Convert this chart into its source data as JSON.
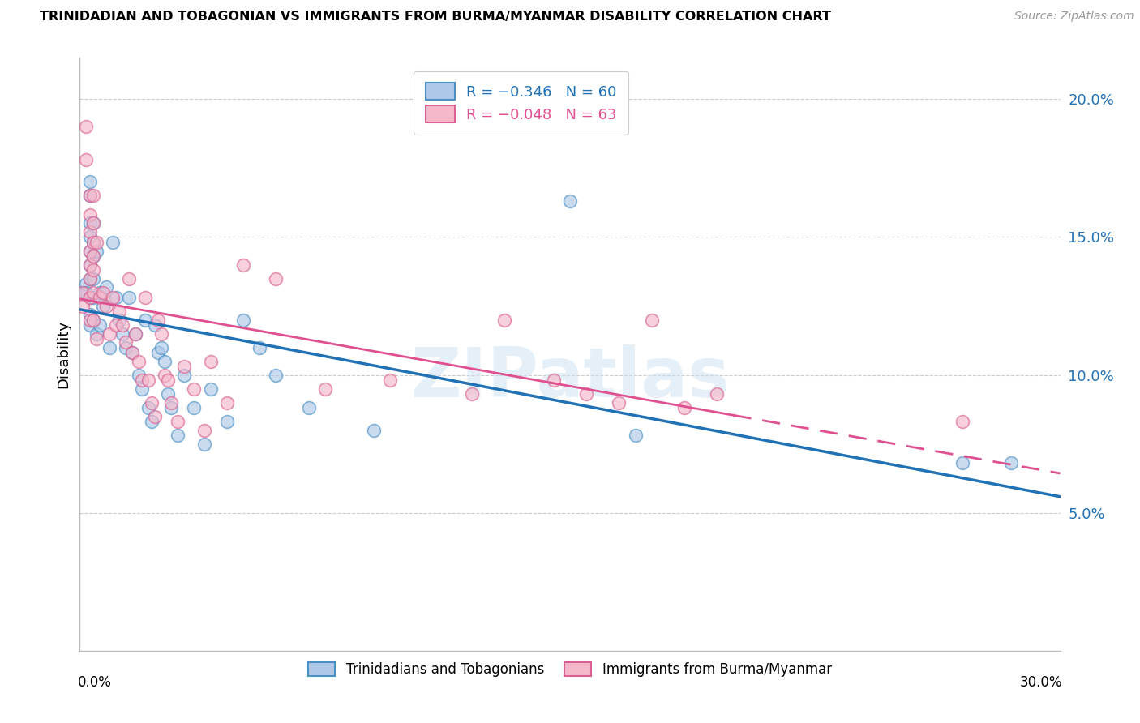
{
  "title": "TRINIDADIAN AND TOBAGONIAN VS IMMIGRANTS FROM BURMA/MYANMAR DISABILITY CORRELATION CHART",
  "source": "Source: ZipAtlas.com",
  "ylabel": "Disability",
  "xlim": [
    0.0,
    0.3
  ],
  "ylim": [
    0.0,
    0.215
  ],
  "yticks": [
    0.05,
    0.1,
    0.15,
    0.2
  ],
  "ytick_labels": [
    "5.0%",
    "10.0%",
    "15.0%",
    "20.0%"
  ],
  "watermark": "ZIPatlas",
  "blue_color": "#aec8e8",
  "blue_edge": "#4a90c4",
  "pink_color": "#f5b8cb",
  "pink_edge": "#d96090",
  "blue_line_color": "#2171b5",
  "pink_line_color": "#e05090",
  "background_color": "#ffffff",
  "grid_color": "#cccccc",
  "blue_scatter_x": [
    0.001,
    0.002,
    0.002,
    0.003,
    0.003,
    0.003,
    0.003,
    0.003,
    0.003,
    0.003,
    0.003,
    0.003,
    0.003,
    0.004,
    0.004,
    0.004,
    0.004,
    0.004,
    0.004,
    0.005,
    0.005,
    0.006,
    0.006,
    0.007,
    0.008,
    0.009,
    0.01,
    0.011,
    0.012,
    0.013,
    0.014,
    0.015,
    0.016,
    0.017,
    0.018,
    0.019,
    0.02,
    0.021,
    0.022,
    0.023,
    0.024,
    0.025,
    0.026,
    0.027,
    0.028,
    0.03,
    0.032,
    0.035,
    0.038,
    0.04,
    0.045,
    0.05,
    0.055,
    0.06,
    0.07,
    0.09,
    0.15,
    0.17,
    0.27,
    0.285
  ],
  "blue_scatter_y": [
    0.13,
    0.133,
    0.13,
    0.17,
    0.165,
    0.155,
    0.15,
    0.145,
    0.14,
    0.135,
    0.128,
    0.122,
    0.118,
    0.155,
    0.148,
    0.143,
    0.135,
    0.128,
    0.12,
    0.145,
    0.115,
    0.13,
    0.118,
    0.125,
    0.132,
    0.11,
    0.148,
    0.128,
    0.12,
    0.115,
    0.11,
    0.128,
    0.108,
    0.115,
    0.1,
    0.095,
    0.12,
    0.088,
    0.083,
    0.118,
    0.108,
    0.11,
    0.105,
    0.093,
    0.088,
    0.078,
    0.1,
    0.088,
    0.075,
    0.095,
    0.083,
    0.12,
    0.11,
    0.1,
    0.088,
    0.08,
    0.163,
    0.078,
    0.068,
    0.068
  ],
  "pink_scatter_x": [
    0.001,
    0.001,
    0.002,
    0.002,
    0.003,
    0.003,
    0.003,
    0.003,
    0.003,
    0.003,
    0.003,
    0.003,
    0.004,
    0.004,
    0.004,
    0.004,
    0.004,
    0.004,
    0.004,
    0.005,
    0.005,
    0.006,
    0.007,
    0.008,
    0.009,
    0.01,
    0.011,
    0.012,
    0.013,
    0.014,
    0.015,
    0.016,
    0.017,
    0.018,
    0.019,
    0.02,
    0.021,
    0.022,
    0.023,
    0.024,
    0.025,
    0.026,
    0.027,
    0.028,
    0.03,
    0.032,
    0.035,
    0.038,
    0.04,
    0.045,
    0.05,
    0.06,
    0.075,
    0.095,
    0.12,
    0.13,
    0.145,
    0.155,
    0.165,
    0.175,
    0.185,
    0.195,
    0.27
  ],
  "pink_scatter_y": [
    0.13,
    0.125,
    0.19,
    0.178,
    0.165,
    0.158,
    0.152,
    0.145,
    0.14,
    0.135,
    0.128,
    0.12,
    0.165,
    0.155,
    0.148,
    0.143,
    0.138,
    0.13,
    0.12,
    0.148,
    0.113,
    0.128,
    0.13,
    0.125,
    0.115,
    0.128,
    0.118,
    0.123,
    0.118,
    0.112,
    0.135,
    0.108,
    0.115,
    0.105,
    0.098,
    0.128,
    0.098,
    0.09,
    0.085,
    0.12,
    0.115,
    0.1,
    0.098,
    0.09,
    0.083,
    0.103,
    0.095,
    0.08,
    0.105,
    0.09,
    0.14,
    0.135,
    0.095,
    0.098,
    0.093,
    0.12,
    0.098,
    0.093,
    0.09,
    0.12,
    0.088,
    0.093,
    0.083
  ]
}
